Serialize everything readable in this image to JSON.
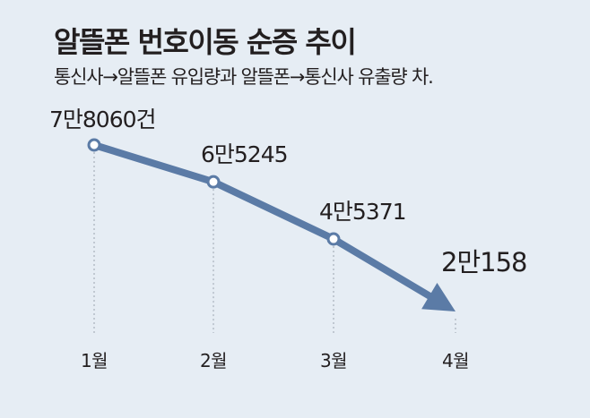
{
  "header": {
    "title": "알뜰폰 번호이동 순증 추이",
    "subtitle": "통신사→알뜰폰 유입량과 알뜰폰→통신사 유출량 차."
  },
  "colors": {
    "background": "#e6edf4",
    "line": "#5b7ba6",
    "text": "#231f20",
    "gridline": "#9aa4ae"
  },
  "chart_data": {
    "type": "line",
    "title": "알뜰폰 번호이동 순증 추이",
    "subtitle": "통신사→알뜰폰 유입량과 알뜰폰→통신사 유출량 차.",
    "categories": [
      "1월",
      "2월",
      "3월",
      "4월"
    ],
    "values": [
      78060,
      65245,
      45371,
      20158
    ],
    "data_labels": [
      "7만8060건",
      "6만5245",
      "4만5371",
      "2만158"
    ],
    "last_point_marker": "arrow",
    "xlabel": "",
    "ylabel": "",
    "grid": "vertical dotted guides"
  }
}
